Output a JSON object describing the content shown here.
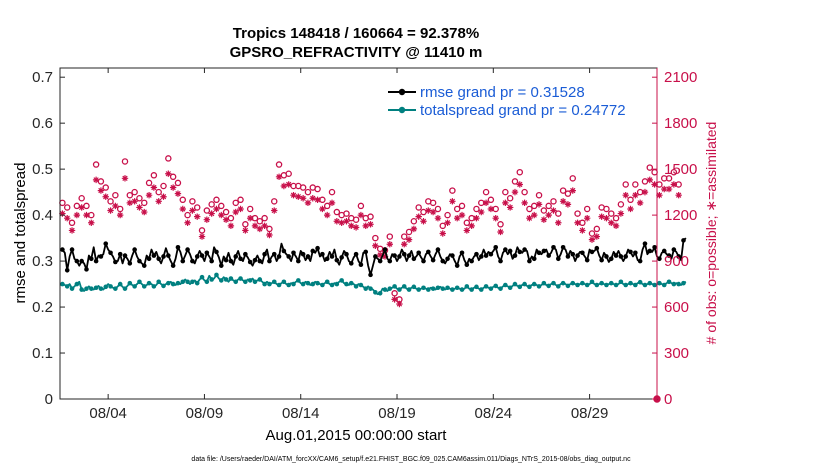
{
  "chart_data": {
    "type": "line",
    "title_line1": "Tropics 148418 / 160664 = 92.378%",
    "title_line2": "GPSRO_REFRACTIVITY @ 11410 m",
    "xlabel": "Aug.01,2015 00:00:00 start",
    "ylabel_left": "rmse and totalspread",
    "ylabel_right": "# of obs: o=possible; ∗=assimilated",
    "footnote": "data file: /Users/raeder/DAI/ATM_forcXX/CAM6_setup/f.e21.FHIST_BGC.f09_025.CAM6assim.011/Diags_NTrS_2015-08/obs_diag_output.nc",
    "x_range_days": [
      0.5,
      31.5
    ],
    "ylim_left": [
      0,
      0.72
    ],
    "ylim_right": [
      0,
      2160
    ],
    "left_ticks": [
      "0",
      "0.1",
      "0.2",
      "0.3",
      "0.4",
      "0.5",
      "0.6",
      "0.7"
    ],
    "left_tick_values": [
      0,
      0.1,
      0.2,
      0.3,
      0.4,
      0.5,
      0.6,
      0.7
    ],
    "right_ticks": [
      "0",
      "300",
      "600",
      "900",
      "1200",
      "1500",
      "1800",
      "2100"
    ],
    "right_tick_values": [
      0,
      300,
      600,
      900,
      1200,
      1500,
      1800,
      2100
    ],
    "x_ticks": [
      "08/04",
      "08/09",
      "08/14",
      "08/19",
      "08/24",
      "08/29"
    ],
    "x_tick_days": [
      3.0,
      8.0,
      13.0,
      18.0,
      23.0,
      28.0
    ],
    "legend": [
      {
        "label": "rmse grand pr = 0.31528",
        "color": "#000000"
      },
      {
        "label": "totalspread grand pr = 0.24772",
        "color": "#008080"
      }
    ],
    "series": [
      {
        "name": "rmse",
        "color": "#000000",
        "axis": "left",
        "values": [
          0.325,
          0.318,
          0.28,
          0.31,
          0.325,
          0.305,
          0.3,
          0.29,
          0.3,
          0.295,
          0.282,
          0.312,
          0.305,
          0.33,
          0.3,
          0.312,
          0.31,
          0.315,
          0.338,
          0.325,
          0.318,
          0.31,
          0.298,
          0.3,
          0.315,
          0.295,
          0.312,
          0.305,
          0.295,
          0.312,
          0.325,
          0.31,
          0.3,
          0.295,
          0.29,
          0.312,
          0.305,
          0.325,
          0.312,
          0.32,
          0.305,
          0.295,
          0.31,
          0.328,
          0.312,
          0.3,
          0.29,
          0.305,
          0.33,
          0.32,
          0.3,
          0.312,
          0.325,
          0.315,
          0.3,
          0.295,
          0.31,
          0.322,
          0.312,
          0.3,
          0.318,
          0.31,
          0.3,
          0.33,
          0.32,
          0.308,
          0.29,
          0.31,
          0.302,
          0.318,
          0.3,
          0.292,
          0.31,
          0.322,
          0.305,
          0.3,
          0.315,
          0.308,
          0.298,
          0.29,
          0.302,
          0.312,
          0.3,
          0.295,
          0.315,
          0.325,
          0.3,
          0.31,
          0.315,
          0.3,
          0.31,
          0.338,
          0.322,
          0.315,
          0.31,
          0.3,
          0.318,
          0.31,
          0.3,
          0.322,
          0.315,
          0.302,
          0.31,
          0.3,
          0.322,
          0.318,
          0.328,
          0.31,
          0.315,
          0.3,
          0.305,
          0.32,
          0.31,
          0.325,
          0.302,
          0.292,
          0.308,
          0.322,
          0.315,
          0.3,
          0.295,
          0.308,
          0.315,
          0.3,
          0.292,
          0.318,
          0.32,
          0.29,
          0.27,
          0.29,
          0.31,
          0.305,
          0.3,
          0.312,
          0.325,
          0.305,
          0.3,
          0.315,
          0.312,
          0.3,
          0.31,
          0.325,
          0.315,
          0.3,
          0.312,
          0.322,
          0.305,
          0.31,
          0.318,
          0.308,
          0.3,
          0.315,
          0.32,
          0.31,
          0.302,
          0.315,
          0.325,
          0.31,
          0.3,
          0.295,
          0.305,
          0.315,
          0.312,
          0.3,
          0.29,
          0.31,
          0.318,
          0.302,
          0.292,
          0.305,
          0.3,
          0.31,
          0.315,
          0.302,
          0.31,
          0.325,
          0.312,
          0.32,
          0.315,
          0.322,
          0.33,
          0.31,
          0.3,
          0.318,
          0.325,
          0.315,
          0.322,
          0.305,
          0.312,
          0.33,
          0.32,
          0.318,
          0.325,
          0.322,
          0.3,
          0.31,
          0.305,
          0.325,
          0.318,
          0.315,
          0.322,
          0.325,
          0.312,
          0.318,
          0.33,
          0.325,
          0.305,
          0.315,
          0.33,
          0.325,
          0.31,
          0.322,
          0.315,
          0.3,
          0.312,
          0.32,
          0.318,
          0.31,
          0.302,
          0.325,
          0.32,
          0.322,
          0.328,
          0.312,
          0.302,
          0.318,
          0.31,
          0.298,
          0.305,
          0.32,
          0.312,
          0.322,
          0.31,
          0.3,
          0.31,
          0.325,
          0.32,
          0.31,
          0.318,
          0.302,
          0.3,
          0.325,
          0.338,
          0.315,
          0.322,
          0.32,
          0.33,
          0.31,
          0.305,
          0.318,
          0.322,
          0.315,
          0.312,
          0.305,
          0.325,
          0.32,
          0.31,
          0.302,
          0.345,
          0.35
        ]
      },
      {
        "name": "totalspread",
        "color": "#008080",
        "axis": "left",
        "values": [
          0.25,
          0.248,
          0.245,
          0.25,
          0.24,
          0.245,
          0.25,
          0.255,
          0.238,
          0.235,
          0.24,
          0.245,
          0.24,
          0.238,
          0.242,
          0.246,
          0.24,
          0.238,
          0.244,
          0.25,
          0.245,
          0.242,
          0.24,
          0.245,
          0.25,
          0.244,
          0.24,
          0.246,
          0.252,
          0.248,
          0.245,
          0.25,
          0.255,
          0.25,
          0.245,
          0.248,
          0.252,
          0.25,
          0.245,
          0.248,
          0.255,
          0.25,
          0.246,
          0.25,
          0.252,
          0.255,
          0.25,
          0.248,
          0.252,
          0.25,
          0.255,
          0.26,
          0.255,
          0.25,
          0.255,
          0.258,
          0.252,
          0.26,
          0.265,
          0.258,
          0.255,
          0.268,
          0.26,
          0.262,
          0.27,
          0.262,
          0.258,
          0.265,
          0.26,
          0.255,
          0.262,
          0.258,
          0.255,
          0.26,
          0.262,
          0.258,
          0.255,
          0.26,
          0.258,
          0.262,
          0.255,
          0.258,
          0.26,
          0.255,
          0.25,
          0.255,
          0.25,
          0.252,
          0.255,
          0.25,
          0.248,
          0.252,
          0.255,
          0.25,
          0.248,
          0.252,
          0.25,
          0.255,
          0.258,
          0.252,
          0.25,
          0.255,
          0.252,
          0.248,
          0.25,
          0.255,
          0.252,
          0.25,
          0.248,
          0.252,
          0.255,
          0.25,
          0.248,
          0.252,
          0.25,
          0.255,
          0.258,
          0.252,
          0.25,
          0.248,
          0.252,
          0.25,
          0.245,
          0.25,
          0.248,
          0.244,
          0.24,
          0.245,
          0.24,
          0.238,
          0.232,
          0.228,
          0.23,
          0.24,
          0.238,
          0.235,
          0.24,
          0.242,
          0.245,
          0.24,
          0.238,
          0.242,
          0.245,
          0.24,
          0.238,
          0.242,
          0.244,
          0.24,
          0.238,
          0.24,
          0.242,
          0.24,
          0.238,
          0.242,
          0.24,
          0.238,
          0.242,
          0.244,
          0.24,
          0.238,
          0.242,
          0.24,
          0.238,
          0.24,
          0.242,
          0.24,
          0.238,
          0.24,
          0.245,
          0.24,
          0.238,
          0.242,
          0.244,
          0.24,
          0.238,
          0.242,
          0.245,
          0.242,
          0.24,
          0.244,
          0.246,
          0.242,
          0.24,
          0.245,
          0.248,
          0.245,
          0.242,
          0.246,
          0.25,
          0.246,
          0.244,
          0.248,
          0.25,
          0.246,
          0.244,
          0.248,
          0.25,
          0.248,
          0.245,
          0.248,
          0.252,
          0.248,
          0.246,
          0.25,
          0.252,
          0.248,
          0.245,
          0.25,
          0.252,
          0.25,
          0.246,
          0.25,
          0.252,
          0.25,
          0.248,
          0.25,
          0.252,
          0.25,
          0.248,
          0.25,
          0.255,
          0.25,
          0.248,
          0.25,
          0.252,
          0.25,
          0.248,
          0.25,
          0.252,
          0.25,
          0.248,
          0.25,
          0.255,
          0.25,
          0.248,
          0.25,
          0.252,
          0.25,
          0.248,
          0.252,
          0.254,
          0.25,
          0.248,
          0.25,
          0.252,
          0.25,
          0.248,
          0.25,
          0.252,
          0.25,
          0.248,
          0.252,
          0.255,
          0.252,
          0.25,
          0.252,
          0.25,
          0.248,
          0.252,
          0.255
        ]
      },
      {
        "name": "obs_possible",
        "marker": "circle",
        "color": "#c8104a",
        "axis": "right",
        "values": [
          1280,
          1320,
          1250,
          1210,
          1150,
          1200,
          1260,
          1220,
          1310,
          1150,
          1260,
          1220,
          1200,
          1380,
          1530,
          1460,
          1420,
          1480,
          1380,
          1320,
          1290,
          1360,
          1330,
          1410,
          1240,
          1290,
          1550,
          1300,
          1330,
          1420,
          1350,
          1280,
          1310,
          1340,
          1280,
          1380,
          1410,
          1260,
          1460,
          1380,
          1350,
          1320,
          1390,
          1420,
          1570,
          1480,
          1450,
          1430,
          1410,
          1380,
          1300,
          1240,
          1200,
          1320,
          1290,
          1260,
          1250,
          1190,
          1100,
          1150,
          1230,
          1200,
          1270,
          1340,
          1300,
          1280,
          1260,
          1250,
          1220,
          1180,
          1180,
          1200,
          1280,
          1260,
          1300,
          1190,
          1140,
          1160,
          1240,
          1210,
          1180,
          1260,
          1160,
          1220,
          1180,
          1100,
          1110,
          1300,
          1290,
          1540,
          1530,
          1510,
          1460,
          1420,
          1470,
          1430,
          1390,
          1410,
          1390,
          1440,
          1380,
          1300,
          1350,
          1410,
          1380,
          1340,
          1370,
          1320,
          1300,
          1250,
          1260,
          1290,
          1350,
          1300,
          1220,
          1280,
          1200,
          1240,
          1210,
          1130,
          1180,
          1090,
          1170,
          1150,
          1260,
          1220,
          1180,
          1140,
          1190,
          1110,
          1050,
          1180,
          980,
          1050,
          970,
          1080,
          1060,
          700,
          690,
          680,
          650,
          1100,
          1060,
          1110,
          1090,
          1110,
          1160,
          1230,
          1250,
          1300,
          1220,
          1280,
          1290,
          1310,
          1280,
          1250,
          1240,
          1160,
          1130,
          1210,
          1200,
          1270,
          1360,
          1310,
          1240,
          1280,
          1260,
          1200,
          1150,
          1220,
          1180,
          1170,
          1240,
          1320,
          1280,
          1360,
          1350,
          1330,
          1300,
          1320,
          1240,
          1110,
          1140,
          1180,
          1350,
          1420,
          1310,
          1290,
          1420,
          1370,
          1480,
          1380,
          1350,
          1110,
          1240,
          1210,
          1260,
          1320,
          1330,
          1200,
          1230,
          1250,
          1260,
          1300,
          1290,
          1180,
          1210,
          1280,
          1360,
          1380,
          1340,
          1420,
          1440,
          1380,
          1210,
          1180,
          1150,
          1210,
          1240,
          1130,
          1080,
          1160,
          1110,
          1220,
          1250,
          1300,
          1240,
          1340,
          1210,
          1150,
          1180,
          1240,
          1270,
          1210,
          1400,
          1350,
          1300,
          1480,
          1400,
          1380,
          1350,
          1480,
          1420,
          1520,
          1510,
          1470,
          1480,
          1390,
          1400,
          1420,
          1440,
          1350,
          1440,
          1550,
          1480,
          1390,
          1400,
          1470
        ]
      },
      {
        "name": "obs_assimilated",
        "marker": "star",
        "color": "#c8104a",
        "axis": "right",
        "values": [
          1210,
          1230,
          1180,
          1150,
          1100,
          1150,
          1200,
          1180,
          1250,
          1120,
          1200,
          1160,
          1150,
          1300,
          1430,
          1400,
          1360,
          1410,
          1320,
          1260,
          1230,
          1300,
          1260,
          1340,
          1200,
          1250,
          1440,
          1250,
          1280,
          1340,
          1290,
          1220,
          1250,
          1270,
          1220,
          1310,
          1330,
          1200,
          1380,
          1320,
          1290,
          1260,
          1320,
          1340,
          1470,
          1410,
          1380,
          1360,
          1340,
          1300,
          1240,
          1190,
          1150,
          1260,
          1230,
          1200,
          1190,
          1140,
          1060,
          1100,
          1170,
          1150,
          1210,
          1270,
          1240,
          1220,
          1200,
          1190,
          1170,
          1130,
          1130,
          1150,
          1220,
          1200,
          1240,
          1140,
          1100,
          1120,
          1180,
          1160,
          1130,
          1200,
          1110,
          1170,
          1130,
          1060,
          1070,
          1240,
          1230,
          1460,
          1450,
          1430,
          1390,
          1350,
          1400,
          1360,
          1330,
          1340,
          1320,
          1370,
          1310,
          1240,
          1280,
          1340,
          1310,
          1280,
          1300,
          1260,
          1240,
          1190,
          1200,
          1230,
          1280,
          1240,
          1160,
          1220,
          1150,
          1180,
          1160,
          1090,
          1130,
          1050,
          1120,
          1100,
          1200,
          1160,
          1130,
          1090,
          1140,
          1060,
          1000,
          1120,
          940,
          1000,
          930,
          1030,
          1010,
          660,
          650,
          640,
          620,
          1050,
          1010,
          1060,
          1040,
          1060,
          1110,
          1170,
          1190,
          1240,
          1160,
          1220,
          1230,
          1250,
          1220,
          1190,
          1180,
          1110,
          1080,
          1160,
          1150,
          1210,
          1290,
          1250,
          1180,
          1220,
          1200,
          1150,
          1100,
          1160,
          1130,
          1120,
          1180,
          1260,
          1220,
          1290,
          1280,
          1260,
          1240,
          1250,
          1180,
          1060,
          1090,
          1130,
          1280,
          1350,
          1250,
          1230,
          1350,
          1300,
          1400,
          1310,
          1280,
          1060,
          1180,
          1160,
          1200,
          1260,
          1270,
          1150,
          1170,
          1190,
          1200,
          1240,
          1230,
          1130,
          1150,
          1220,
          1290,
          1310,
          1270,
          1350,
          1360,
          1310,
          1150,
          1130,
          1100,
          1150,
          1180,
          1080,
          1040,
          1110,
          1060,
          1160,
          1190,
          1240,
          1180,
          1270,
          1150,
          1100,
          1130,
          1180,
          1210,
          1160,
          1330,
          1280,
          1240,
          1400,
          1330,
          1310,
          1280,
          1400,
          1350,
          1440,
          1430,
          1390,
          1400,
          1320,
          1330,
          1350,
          1370,
          1280,
          1370,
          1470,
          1400,
          1320,
          1330,
          1390
        ]
      }
    ]
  }
}
